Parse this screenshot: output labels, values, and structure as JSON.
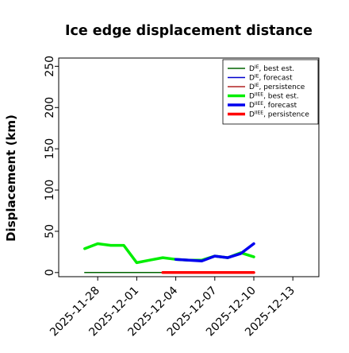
{
  "chart_data": {
    "type": "line",
    "title": "Ice edge displacement distance",
    "xlabel": "",
    "ylabel": "Displacement (km)",
    "ylim": [
      -5,
      260
    ],
    "xlim": [
      "2025-11-25",
      "2025-12-15"
    ],
    "grid": false,
    "legend_position": "top-right",
    "highlight_date": "2025-12-04",
    "highlight_color": "#2e8b2e",
    "y_ticks": [
      0,
      50,
      100,
      150,
      200,
      250
    ],
    "x_ticks": [
      {
        "date": "2025-11-28",
        "label": "2025-11-28"
      },
      {
        "date": "2025-12-01",
        "label": "2025-12-01"
      },
      {
        "date": "2025-12-04",
        "label": "2025-12-04"
      },
      {
        "date": "2025-12-07",
        "label": "2025-12-07"
      },
      {
        "date": "2025-12-10",
        "label": "2025-12-10"
      },
      {
        "date": "2025-12-13",
        "label": "2025-12-13"
      }
    ],
    "series": [
      {
        "id": "DIE_best",
        "legend_base": "D",
        "legend_sup": "IE",
        "legend_suffix": ", best est.",
        "color": "#006400",
        "width": 1.5,
        "x": [
          "2025-11-27",
          "2025-11-28",
          "2025-11-29",
          "2025-11-30",
          "2025-12-01",
          "2025-12-02",
          "2025-12-03",
          "2025-12-04"
        ],
        "y": [
          0,
          0,
          0,
          0,
          0,
          0,
          0,
          0
        ]
      },
      {
        "id": "DIE_forecast",
        "legend_base": "D",
        "legend_sup": "IE",
        "legend_suffix": ", forecast",
        "color": "#0000cd",
        "width": 1.5,
        "x": [
          "2025-12-04",
          "2025-12-05",
          "2025-12-06",
          "2025-12-07",
          "2025-12-08",
          "2025-12-09",
          "2025-12-10"
        ],
        "y": [
          0,
          0,
          0,
          0,
          0,
          0,
          0
        ]
      },
      {
        "id": "DIE_persistence",
        "legend_base": "D",
        "legend_sup": "IE",
        "legend_suffix": ", persistence",
        "color": "#b22222",
        "width": 1.5,
        "x": [
          "2025-12-04",
          "2025-12-05",
          "2025-12-06",
          "2025-12-07",
          "2025-12-08",
          "2025-12-09",
          "2025-12-10"
        ],
        "y": [
          0,
          0,
          0,
          0,
          0,
          0,
          0
        ]
      },
      {
        "id": "DIIEE_best",
        "legend_base": "D",
        "legend_sup": "IIEE",
        "legend_suffix": ", best est.",
        "color": "#00ee00",
        "width": 3.5,
        "x": [
          "2025-11-27",
          "2025-11-28",
          "2025-11-29",
          "2025-11-30",
          "2025-12-01",
          "2025-12-02",
          "2025-12-03",
          "2025-12-04",
          "2025-12-05",
          "2025-12-06",
          "2025-12-07",
          "2025-12-08",
          "2025-12-09",
          "2025-12-10"
        ],
        "y": [
          29,
          35,
          33,
          33,
          12,
          15,
          18,
          16,
          15,
          15,
          20,
          18,
          24,
          19
        ]
      },
      {
        "id": "DIIEE_forecast",
        "legend_base": "D",
        "legend_sup": "IIEE",
        "legend_suffix": ", forecast",
        "color": "#0000ee",
        "width": 3.5,
        "x": [
          "2025-12-04",
          "2025-12-05",
          "2025-12-06",
          "2025-12-07",
          "2025-12-08",
          "2025-12-09",
          "2025-12-10"
        ],
        "y": [
          16,
          15,
          14,
          20,
          18,
          23,
          35
        ]
      },
      {
        "id": "DIIEE_persistence",
        "legend_base": "D",
        "legend_sup": "IIEE",
        "legend_suffix": ", persistence",
        "color": "#ff0000",
        "width": 3.5,
        "x": [
          "2025-12-03",
          "2025-12-04",
          "2025-12-05",
          "2025-12-06",
          "2025-12-07",
          "2025-12-08",
          "2025-12-09",
          "2025-12-10"
        ],
        "y": [
          0,
          0,
          0,
          0,
          0,
          0,
          0,
          0
        ]
      }
    ]
  }
}
